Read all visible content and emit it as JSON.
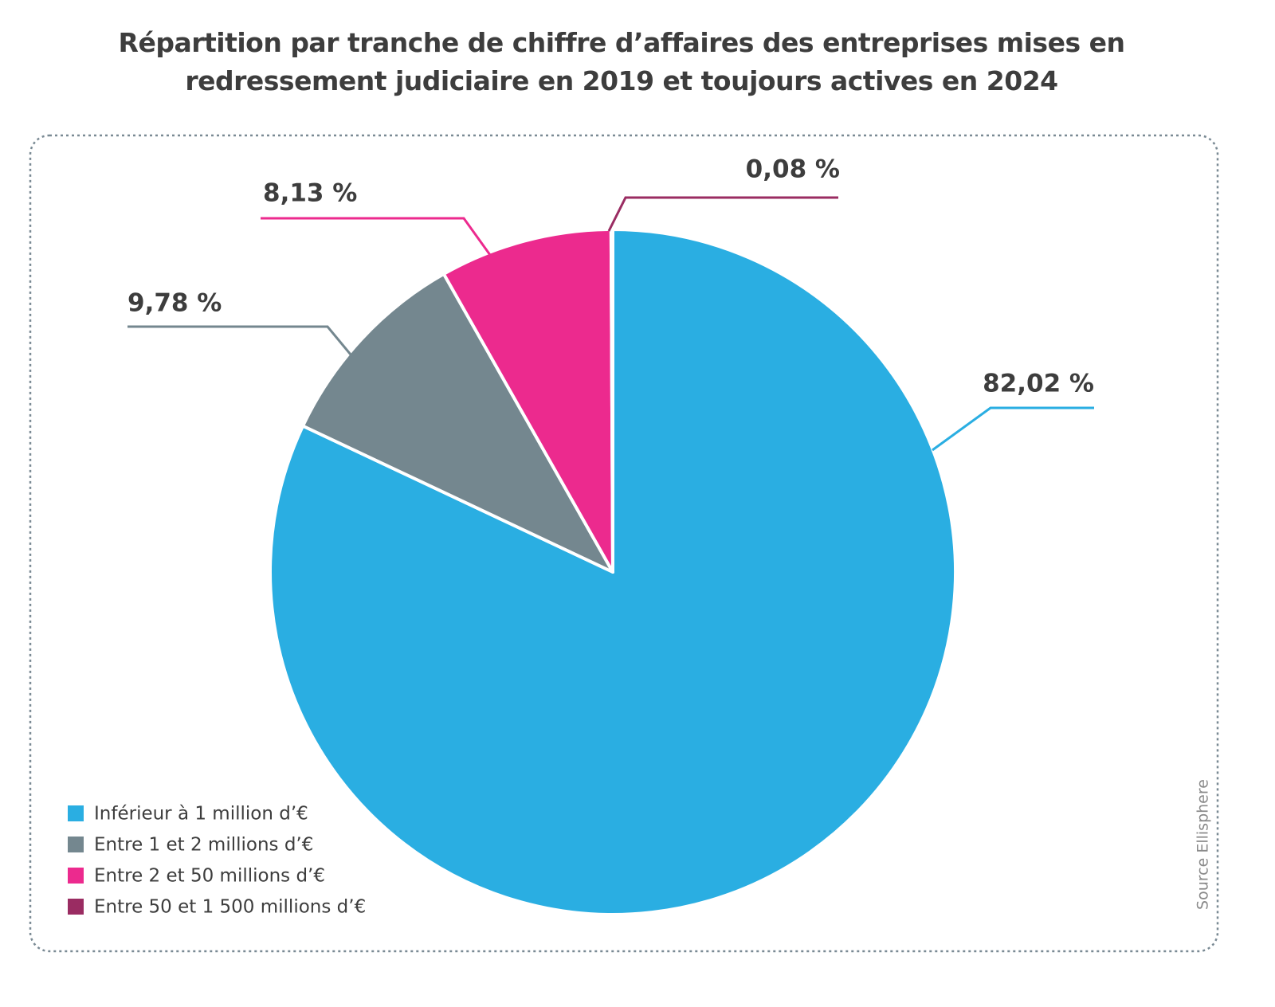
{
  "chart_data": {
    "type": "pie",
    "title": "Répartition par tranche de chiffre d’affaires des entreprises mises en redressement judiciaire en 2019 et toujours actives en 2024",
    "categories": [
      "Inférieur à 1 million d’€",
      "Entre 1 et 2 millions d’€",
      "Entre 2 et 50 millions d’€",
      "Entre 50 et 1 500 millions d’€"
    ],
    "values": [
      82.02,
      9.78,
      8.13,
      0.08
    ],
    "value_labels": [
      "82,02 %",
      "9,78 %",
      "8,13 %",
      "0,08 %"
    ],
    "colors": [
      "#2aaee2",
      "#74878f",
      "#ec2a8e",
      "#9a2c62"
    ],
    "legend": "bottom-left",
    "source": "Source Ellisphere"
  }
}
